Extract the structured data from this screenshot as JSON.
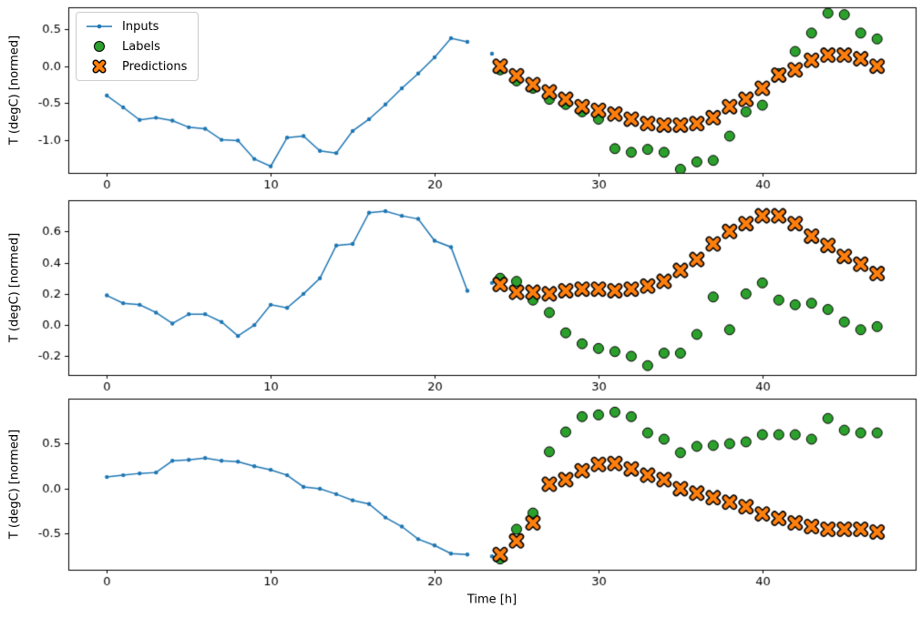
{
  "figure": {
    "background": "#ffffff",
    "xlabel": "Time [h]",
    "axis_color": "#000000",
    "text_color": "#000000"
  },
  "legend": {
    "position": "upper-left",
    "items": [
      {
        "label": "Inputs",
        "marker": "line-with-dot",
        "color": "#1f77b4"
      },
      {
        "label": "Labels",
        "marker": "filled-circle",
        "color": "#2ca02c",
        "edge_color": "#000000"
      },
      {
        "label": "Predictions",
        "marker": "thick-x",
        "color": "#ff7f0e",
        "edge_color": "#000000"
      }
    ]
  },
  "chart_data": [
    {
      "type": "line",
      "title": "",
      "xlabel": "",
      "ylabel": "T (degC) [normed]",
      "xlim": [
        -2.35,
        49.35
      ],
      "ylim": [
        -1.45,
        0.8
      ],
      "xticks": [
        0,
        10,
        20,
        30,
        40
      ],
      "xtick_labels": [
        "0",
        "10",
        "20",
        "30",
        "40"
      ],
      "yticks": [
        0.5,
        0.0,
        -0.5,
        -1.0
      ],
      "ytick_labels": [
        "0.5",
        "0.0",
        "-0.5",
        "-1.0"
      ],
      "series": [
        {
          "name": "Inputs",
          "kind": "line-dot",
          "color": "#1f77b4",
          "gap_after": 22,
          "x": [
            0,
            1,
            2,
            3,
            4,
            5,
            6,
            7,
            8,
            9,
            10,
            11,
            12,
            13,
            14,
            15,
            16,
            17,
            18,
            19,
            20,
            21,
            22,
            23.5
          ],
          "y": [
            -0.4,
            -0.56,
            -0.73,
            -0.7,
            -0.74,
            -0.83,
            -0.85,
            -1.0,
            -1.01,
            -1.26,
            -1.36,
            -0.97,
            -0.95,
            -1.15,
            -1.18,
            -0.88,
            -0.72,
            -0.52,
            -0.3,
            -0.1,
            0.12,
            0.38,
            0.33,
            0.17
          ]
        },
        {
          "name": "Labels",
          "kind": "scatter-circle",
          "color": "#2ca02c",
          "edge": "#000000",
          "x": [
            24,
            25,
            26,
            27,
            28,
            29,
            30,
            31,
            32,
            33,
            34,
            35,
            36,
            37,
            38,
            39,
            40,
            41,
            42,
            43,
            44,
            45,
            46,
            47
          ],
          "y": [
            -0.05,
            -0.2,
            -0.3,
            -0.45,
            -0.52,
            -0.62,
            -0.72,
            -1.12,
            -1.17,
            -1.13,
            -1.17,
            -1.4,
            -1.3,
            -1.28,
            -0.95,
            -0.62,
            -0.53,
            -0.1,
            0.2,
            0.45,
            0.72,
            0.7,
            0.45,
            0.37
          ]
        },
        {
          "name": "Predictions",
          "kind": "scatter-x",
          "color": "#ff7f0e",
          "edge": "#000000",
          "x": [
            24,
            25,
            26,
            27,
            28,
            29,
            30,
            31,
            32,
            33,
            34,
            35,
            36,
            37,
            38,
            39,
            40,
            41,
            42,
            43,
            44,
            45,
            46,
            47
          ],
          "y": [
            0.0,
            -0.13,
            -0.25,
            -0.35,
            -0.45,
            -0.55,
            -0.6,
            -0.65,
            -0.72,
            -0.78,
            -0.8,
            -0.8,
            -0.78,
            -0.7,
            -0.55,
            -0.45,
            -0.3,
            -0.12,
            -0.05,
            0.08,
            0.15,
            0.15,
            0.1,
            0.0
          ]
        }
      ]
    },
    {
      "type": "line",
      "title": "",
      "xlabel": "",
      "ylabel": "T (degC) [normed]",
      "xlim": [
        -2.35,
        49.35
      ],
      "ylim": [
        -0.32,
        0.8
      ],
      "xticks": [
        0,
        10,
        20,
        30,
        40
      ],
      "xtick_labels": [
        "0",
        "10",
        "20",
        "30",
        "40"
      ],
      "yticks": [
        0.6,
        0.4,
        0.2,
        0.0,
        -0.2
      ],
      "ytick_labels": [
        "0.6",
        "0.4",
        "0.2",
        "0.0",
        "-0.2"
      ],
      "series": [
        {
          "name": "Inputs",
          "kind": "line-dot",
          "color": "#1f77b4",
          "gap_after": 22,
          "x": [
            0,
            1,
            2,
            3,
            4,
            5,
            6,
            7,
            8,
            9,
            10,
            11,
            12,
            13,
            14,
            15,
            16,
            17,
            18,
            19,
            20,
            21,
            22,
            23.5
          ],
          "y": [
            0.19,
            0.14,
            0.13,
            0.08,
            0.01,
            0.07,
            0.07,
            0.02,
            -0.07,
            0.0,
            0.13,
            0.11,
            0.2,
            0.3,
            0.51,
            0.52,
            0.72,
            0.73,
            0.7,
            0.68,
            0.54,
            0.5,
            0.22,
            0.27
          ]
        },
        {
          "name": "Labels",
          "kind": "scatter-circle",
          "color": "#2ca02c",
          "edge": "#000000",
          "x": [
            24,
            25,
            26,
            27,
            28,
            29,
            30,
            31,
            32,
            33,
            34,
            35,
            36,
            37,
            38,
            39,
            40,
            41,
            42,
            43,
            44,
            45,
            46,
            47
          ],
          "y": [
            0.3,
            0.28,
            0.16,
            0.08,
            -0.05,
            -0.12,
            -0.15,
            -0.17,
            -0.2,
            -0.26,
            -0.18,
            -0.18,
            -0.06,
            0.18,
            -0.03,
            0.2,
            0.27,
            0.16,
            0.13,
            0.14,
            0.1,
            0.02,
            -0.03,
            -0.01
          ]
        },
        {
          "name": "Predictions",
          "kind": "scatter-x",
          "color": "#ff7f0e",
          "edge": "#000000",
          "x": [
            24,
            25,
            26,
            27,
            28,
            29,
            30,
            31,
            32,
            33,
            34,
            35,
            36,
            37,
            38,
            39,
            40,
            41,
            42,
            43,
            44,
            45,
            46,
            47
          ],
          "y": [
            0.26,
            0.21,
            0.21,
            0.2,
            0.22,
            0.23,
            0.23,
            0.22,
            0.23,
            0.25,
            0.28,
            0.35,
            0.42,
            0.52,
            0.6,
            0.65,
            0.7,
            0.7,
            0.65,
            0.57,
            0.51,
            0.44,
            0.39,
            0.33
          ]
        }
      ]
    },
    {
      "type": "line",
      "title": "",
      "xlabel": "Time [h]",
      "ylabel": "T (degC) [normed]",
      "xlim": [
        -2.35,
        49.35
      ],
      "ylim": [
        -0.9,
        1.0
      ],
      "xticks": [
        0,
        10,
        20,
        30,
        40
      ],
      "xtick_labels": [
        "0",
        "10",
        "20",
        "30",
        "40"
      ],
      "yticks": [
        0.5,
        0.0,
        -0.5
      ],
      "ytick_labels": [
        "0.5",
        "0.0",
        "-0.5"
      ],
      "series": [
        {
          "name": "Inputs",
          "kind": "line-dot",
          "color": "#1f77b4",
          "gap_after": 22,
          "x": [
            0,
            1,
            2,
            3,
            4,
            5,
            6,
            7,
            8,
            9,
            10,
            11,
            12,
            13,
            14,
            15,
            16,
            17,
            18,
            19,
            20,
            21,
            22,
            23.5
          ],
          "y": [
            0.13,
            0.15,
            0.17,
            0.18,
            0.31,
            0.32,
            0.34,
            0.31,
            0.3,
            0.25,
            0.21,
            0.15,
            0.02,
            0.0,
            -0.06,
            -0.13,
            -0.17,
            -0.32,
            -0.42,
            -0.56,
            -0.63,
            -0.72,
            -0.73,
            -0.75
          ]
        },
        {
          "name": "Labels",
          "kind": "scatter-circle",
          "color": "#2ca02c",
          "edge": "#000000",
          "x": [
            24,
            25,
            26,
            27,
            28,
            29,
            30,
            31,
            32,
            33,
            34,
            35,
            36,
            37,
            38,
            39,
            40,
            41,
            42,
            43,
            44,
            45,
            46,
            47
          ],
          "y": [
            -0.78,
            -0.45,
            -0.27,
            0.41,
            0.63,
            0.8,
            0.82,
            0.85,
            0.8,
            0.62,
            0.55,
            0.4,
            0.47,
            0.48,
            0.5,
            0.52,
            0.6,
            0.6,
            0.6,
            0.55,
            0.78,
            0.65,
            0.62,
            0.62
          ]
        },
        {
          "name": "Predictions",
          "kind": "scatter-x",
          "color": "#ff7f0e",
          "edge": "#000000",
          "x": [
            24,
            25,
            26,
            27,
            28,
            29,
            30,
            31,
            32,
            33,
            34,
            35,
            36,
            37,
            38,
            39,
            40,
            41,
            42,
            43,
            44,
            45,
            46,
            47
          ],
          "y": [
            -0.73,
            -0.58,
            -0.38,
            0.05,
            0.1,
            0.2,
            0.27,
            0.28,
            0.22,
            0.15,
            0.1,
            0.0,
            -0.05,
            -0.1,
            -0.15,
            -0.2,
            -0.28,
            -0.33,
            -0.38,
            -0.42,
            -0.45,
            -0.45,
            -0.45,
            -0.48
          ]
        }
      ]
    }
  ]
}
